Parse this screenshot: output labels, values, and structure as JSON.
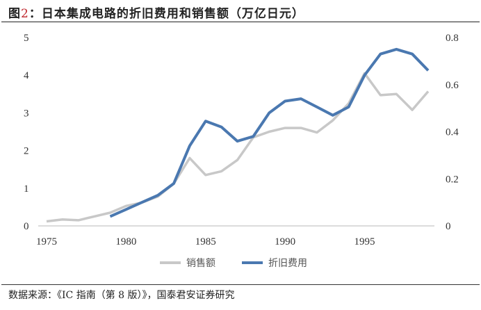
{
  "header": {
    "prefix": "图",
    "number": "2",
    "text": "：日本集成电路的折旧费用和销售额（万亿日元）"
  },
  "footer": {
    "source": "数据来源：《IC 指南（第 8 版）》，国泰君安证券研究"
  },
  "chart_data": {
    "type": "line",
    "title": "",
    "x": [
      1975,
      1976,
      1977,
      1978,
      1979,
      1980,
      1981,
      1982,
      1983,
      1984,
      1985,
      1986,
      1987,
      1988,
      1989,
      1990,
      1991,
      1992,
      1993,
      1994,
      1995,
      1996,
      1997,
      1998,
      1999
    ],
    "xticks": [
      "1975",
      "1980",
      "1985",
      "1990",
      "1995"
    ],
    "xlim": [
      1975,
      1999
    ],
    "y_left": {
      "ylim": [
        0,
        5
      ],
      "ticks": [
        "0",
        "1",
        "2",
        "3",
        "4",
        "5"
      ]
    },
    "y_right": {
      "ylim": [
        0,
        0.8
      ],
      "ticks": [
        "0",
        "0.2",
        "0.4",
        "0.6",
        "0.8"
      ]
    },
    "grid": false,
    "legend": "bottom",
    "series": [
      {
        "name": "销售额",
        "axis": "left",
        "color": "#c8c8c8",
        "values": [
          0.12,
          0.17,
          0.15,
          0.25,
          0.35,
          0.53,
          0.62,
          0.78,
          1.12,
          1.8,
          1.35,
          1.45,
          1.75,
          2.35,
          2.5,
          2.6,
          2.6,
          2.48,
          2.8,
          3.25,
          4.05,
          3.47,
          3.5,
          3.08,
          3.57
        ]
      },
      {
        "name": "折旧费用",
        "axis": "right",
        "color": "#4a78b0",
        "values": [
          null,
          null,
          null,
          null,
          0.04,
          0.07,
          0.1,
          0.13,
          0.18,
          0.34,
          0.445,
          0.42,
          0.36,
          0.38,
          0.48,
          0.53,
          0.54,
          0.505,
          0.47,
          0.505,
          0.64,
          0.73,
          0.75,
          0.73,
          0.66
        ]
      }
    ]
  }
}
